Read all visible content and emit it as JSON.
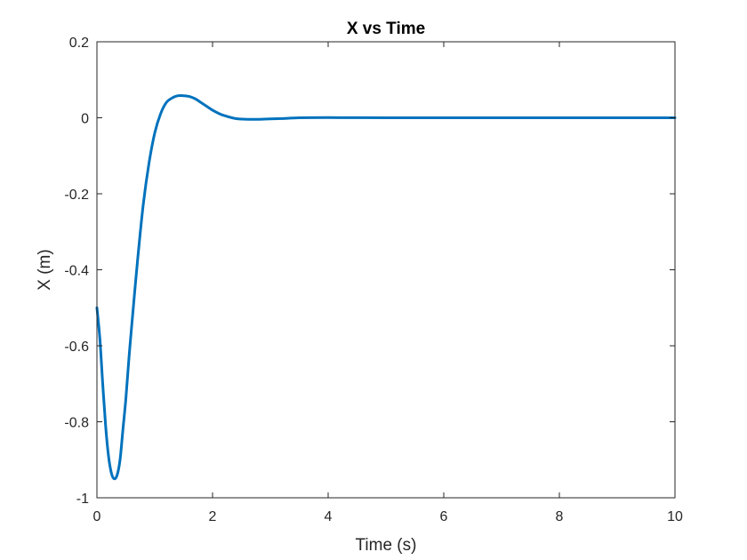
{
  "chart_data": {
    "type": "line",
    "title": "X vs Time",
    "xlabel": "Time (s)",
    "ylabel": "X (m)",
    "xlim": [
      0,
      10
    ],
    "ylim": [
      -1,
      0.2
    ],
    "xticks": [
      0,
      2,
      4,
      6,
      8,
      10
    ],
    "xtick_labels": [
      "0",
      "2",
      "4",
      "6",
      "8",
      "10"
    ],
    "yticks": [
      -1,
      -0.8,
      -0.6,
      -0.4,
      -0.2,
      0,
      0.2
    ],
    "ytick_labels": [
      "-1",
      "-0.8",
      "-0.6",
      "-0.4",
      "-0.2",
      "0",
      "0.2"
    ],
    "grid": false,
    "line_color": "#0072BD",
    "series": [
      {
        "x": [
          0,
          0.05,
          0.1,
          0.15,
          0.2,
          0.25,
          0.3,
          0.35,
          0.4,
          0.45,
          0.5,
          0.55,
          0.6,
          0.7,
          0.8,
          0.9,
          1.0,
          1.1,
          1.2,
          1.3,
          1.4,
          1.5,
          1.6,
          1.7,
          1.8,
          1.9,
          2.0,
          2.1,
          2.2,
          2.4,
          2.6,
          2.8,
          3.0,
          3.2,
          3.5,
          4.0,
          5.0,
          6.0,
          7.0,
          8.0,
          9.0,
          10.0
        ],
        "y": [
          -0.5,
          -0.58,
          -0.7,
          -0.81,
          -0.89,
          -0.935,
          -0.95,
          -0.94,
          -0.9,
          -0.82,
          -0.74,
          -0.64,
          -0.55,
          -0.38,
          -0.23,
          -0.12,
          -0.04,
          0.01,
          0.04,
          0.052,
          0.058,
          0.058,
          0.056,
          0.05,
          0.04,
          0.03,
          0.02,
          0.012,
          0.006,
          -0.002,
          -0.004,
          -0.004,
          -0.003,
          -0.002,
          0.0,
          0.0005,
          0.0,
          0.0,
          0.0,
          0.0,
          0.0,
          0.0
        ]
      }
    ]
  }
}
